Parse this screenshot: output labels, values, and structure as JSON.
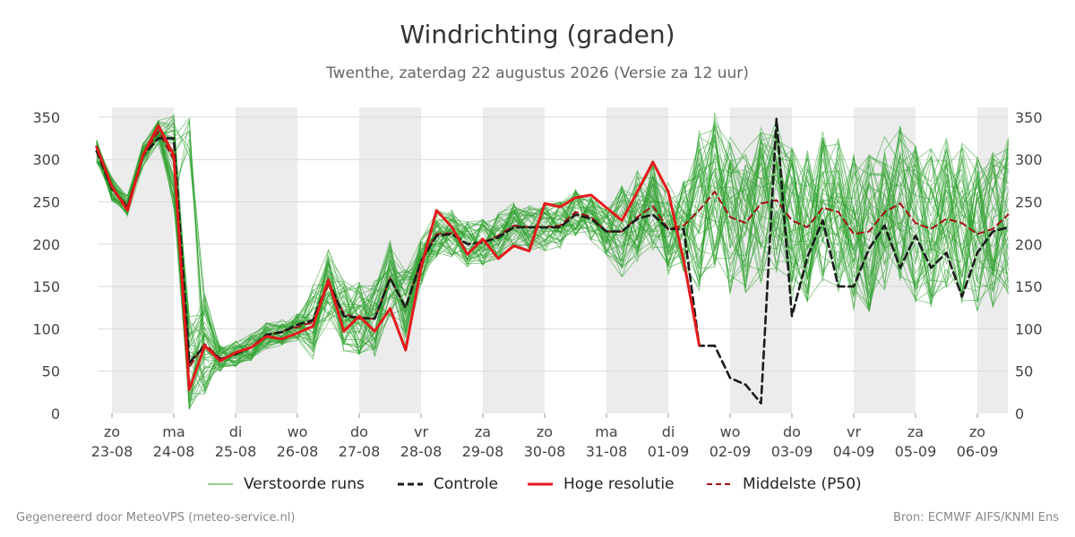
{
  "title": "Windrichting (graden)",
  "subtitle": "Twenthe, zaterdag 22 augustus 2026 (Versie za 12 uur)",
  "footer_left": "Gegenereerd door MeteoVPS (meteo-service.nl)",
  "footer_right": "Bron: ECMWF AIFS/KNMI Ens",
  "colors": {
    "ensemble": "#2ca02c",
    "control": "#1a1a1a",
    "high_res": "#e31a1c",
    "median": "#a50f15",
    "weekend_shade": "#ececec",
    "grid": "#d9d9d9"
  },
  "legend": [
    {
      "key": "ensemble",
      "label": "Verstoorde runs"
    },
    {
      "key": "control",
      "label": "Controle"
    },
    {
      "key": "high_res",
      "label": "Hoge resolutie"
    },
    {
      "key": "median",
      "label": "Middelste (P50)"
    }
  ],
  "chart_data": {
    "type": "line",
    "x_unit": "day index (0 = zo 23-08 00:00)",
    "xlim": [
      -0.22,
      14.5
    ],
    "ylim": [
      0,
      370
    ],
    "yticks": [
      0,
      50,
      100,
      150,
      200,
      250,
      300,
      350
    ],
    "y_axes": "left and right",
    "grid": "horizontal",
    "legend_placement": "bottom",
    "x_ticks": [
      {
        "day": "zo",
        "date": "23-08"
      },
      {
        "day": "ma",
        "date": "24-08"
      },
      {
        "day": "di",
        "date": "25-08"
      },
      {
        "day": "wo",
        "date": "26-08"
      },
      {
        "day": "do",
        "date": "27-08"
      },
      {
        "day": "vr",
        "date": "28-08"
      },
      {
        "day": "za",
        "date": "29-08"
      },
      {
        "day": "zo",
        "date": "30-08"
      },
      {
        "day": "ma",
        "date": "31-08"
      },
      {
        "day": "di",
        "date": "01-09"
      },
      {
        "day": "wo",
        "date": "02-09"
      },
      {
        "day": "do",
        "date": "03-09"
      },
      {
        "day": "vr",
        "date": "04-09"
      },
      {
        "day": "za",
        "date": "05-09"
      },
      {
        "day": "zo",
        "date": "06-09"
      }
    ],
    "shaded_ranges": [
      [
        0,
        1
      ],
      [
        2,
        3
      ],
      [
        4,
        5
      ],
      [
        6,
        7
      ],
      [
        8,
        9
      ],
      [
        10,
        11
      ],
      [
        12,
        13
      ],
      [
        14,
        14.5
      ]
    ],
    "series": [
      {
        "name": "Controle",
        "style": "dashed",
        "points": [
          [
            -0.25,
            310
          ],
          [
            0,
            265
          ],
          [
            0.25,
            243
          ],
          [
            0.5,
            305
          ],
          [
            0.75,
            325
          ],
          [
            1,
            325
          ],
          [
            1.25,
            60
          ],
          [
            1.5,
            80
          ],
          [
            1.75,
            64
          ],
          [
            2,
            70
          ],
          [
            2.25,
            78
          ],
          [
            2.5,
            93
          ],
          [
            2.75,
            96
          ],
          [
            3,
            105
          ],
          [
            3.25,
            110
          ],
          [
            3.5,
            157
          ],
          [
            3.75,
            115
          ],
          [
            4,
            113
          ],
          [
            4.25,
            112
          ],
          [
            4.5,
            160
          ],
          [
            4.75,
            125
          ],
          [
            5,
            180
          ],
          [
            5.25,
            210
          ],
          [
            5.5,
            212
          ],
          [
            5.75,
            200
          ],
          [
            6,
            202
          ],
          [
            6.25,
            208
          ],
          [
            6.5,
            220
          ],
          [
            6.75,
            220
          ],
          [
            7,
            220
          ],
          [
            7.25,
            220
          ],
          [
            7.5,
            235
          ],
          [
            7.75,
            230
          ],
          [
            8,
            215
          ],
          [
            8.25,
            215
          ],
          [
            8.5,
            230
          ],
          [
            8.75,
            235
          ],
          [
            9,
            218
          ],
          [
            9.25,
            218
          ],
          [
            9.5,
            80
          ],
          [
            9.75,
            80
          ],
          [
            10,
            42
          ],
          [
            10.25,
            34
          ],
          [
            10.5,
            12
          ],
          [
            10.75,
            348
          ],
          [
            11,
            115
          ],
          [
            11.25,
            185
          ],
          [
            11.5,
            228
          ],
          [
            11.75,
            150
          ],
          [
            12,
            150
          ],
          [
            12.25,
            195
          ],
          [
            12.5,
            222
          ],
          [
            12.75,
            172
          ],
          [
            13,
            210
          ],
          [
            13.25,
            172
          ],
          [
            13.5,
            190
          ],
          [
            13.75,
            138
          ],
          [
            14,
            190
          ],
          [
            14.25,
            215
          ],
          [
            14.5,
            220
          ]
        ]
      },
      {
        "name": "Hoge resolutie",
        "style": "solid",
        "points": [
          [
            -0.25,
            315
          ],
          [
            0,
            268
          ],
          [
            0.25,
            240
          ],
          [
            0.5,
            305
          ],
          [
            0.75,
            340
          ],
          [
            1,
            305
          ],
          [
            1.25,
            28
          ],
          [
            1.5,
            80
          ],
          [
            1.75,
            62
          ],
          [
            2,
            72
          ],
          [
            2.25,
            78
          ],
          [
            2.5,
            91
          ],
          [
            2.75,
            88
          ],
          [
            3,
            95
          ],
          [
            3.25,
            103
          ],
          [
            3.5,
            158
          ],
          [
            3.75,
            97
          ],
          [
            4,
            115
          ],
          [
            4.25,
            97
          ],
          [
            4.5,
            124
          ],
          [
            4.75,
            75
          ],
          [
            5,
            172
          ],
          [
            5.25,
            240
          ],
          [
            5.5,
            220
          ],
          [
            5.75,
            188
          ],
          [
            6,
            206
          ],
          [
            6.25,
            183
          ],
          [
            6.5,
            198
          ],
          [
            6.75,
            192
          ],
          [
            7,
            248
          ],
          [
            7.25,
            244
          ],
          [
            7.5,
            255
          ],
          [
            7.75,
            258
          ],
          [
            8,
            243
          ],
          [
            8.25,
            228
          ],
          [
            8.5,
            262
          ],
          [
            8.75,
            297
          ],
          [
            9,
            262
          ],
          [
            9.25,
            180
          ],
          [
            9.5,
            81
          ]
        ]
      },
      {
        "name": "Middelste (P50)",
        "style": "dashed",
        "points": [
          [
            -0.25,
            310
          ],
          [
            0,
            265
          ],
          [
            0.25,
            245
          ],
          [
            0.5,
            305
          ],
          [
            0.75,
            333
          ],
          [
            1,
            300
          ],
          [
            1.25,
            55
          ],
          [
            1.5,
            82
          ],
          [
            1.75,
            65
          ],
          [
            2,
            70
          ],
          [
            2.25,
            78
          ],
          [
            2.5,
            92
          ],
          [
            2.75,
            97
          ],
          [
            3,
            102
          ],
          [
            3.25,
            108
          ],
          [
            3.5,
            152
          ],
          [
            3.75,
            118
          ],
          [
            4,
            112
          ],
          [
            4.25,
            112
          ],
          [
            4.5,
            160
          ],
          [
            4.75,
            125
          ],
          [
            5,
            180
          ],
          [
            5.25,
            212
          ],
          [
            5.5,
            213
          ],
          [
            5.75,
            200
          ],
          [
            6,
            202
          ],
          [
            6.25,
            210
          ],
          [
            6.5,
            222
          ],
          [
            6.75,
            220
          ],
          [
            7,
            220
          ],
          [
            7.25,
            222
          ],
          [
            7.5,
            238
          ],
          [
            7.75,
            232
          ],
          [
            8,
            215
          ],
          [
            8.25,
            215
          ],
          [
            8.5,
            232
          ],
          [
            8.75,
            245
          ],
          [
            9,
            218
          ],
          [
            9.25,
            222
          ],
          [
            9.5,
            240
          ],
          [
            9.75,
            262
          ],
          [
            10,
            232
          ],
          [
            10.25,
            225
          ],
          [
            10.5,
            248
          ],
          [
            10.75,
            252
          ],
          [
            11,
            228
          ],
          [
            11.25,
            220
          ],
          [
            11.5,
            243
          ],
          [
            11.75,
            238
          ],
          [
            12,
            212
          ],
          [
            12.25,
            215
          ],
          [
            12.5,
            238
          ],
          [
            12.75,
            248
          ],
          [
            13,
            225
          ],
          [
            13.25,
            218
          ],
          [
            13.5,
            230
          ],
          [
            13.75,
            225
          ],
          [
            14,
            212
          ],
          [
            14.25,
            218
          ],
          [
            14.5,
            235
          ]
        ]
      }
    ],
    "ensemble": {
      "name": "Verstoorde runs",
      "members": 50,
      "rendering": "thin semi-transparent lines, individual member values not readable",
      "note": "envelope reconstructed approximately from visible spread"
    }
  }
}
